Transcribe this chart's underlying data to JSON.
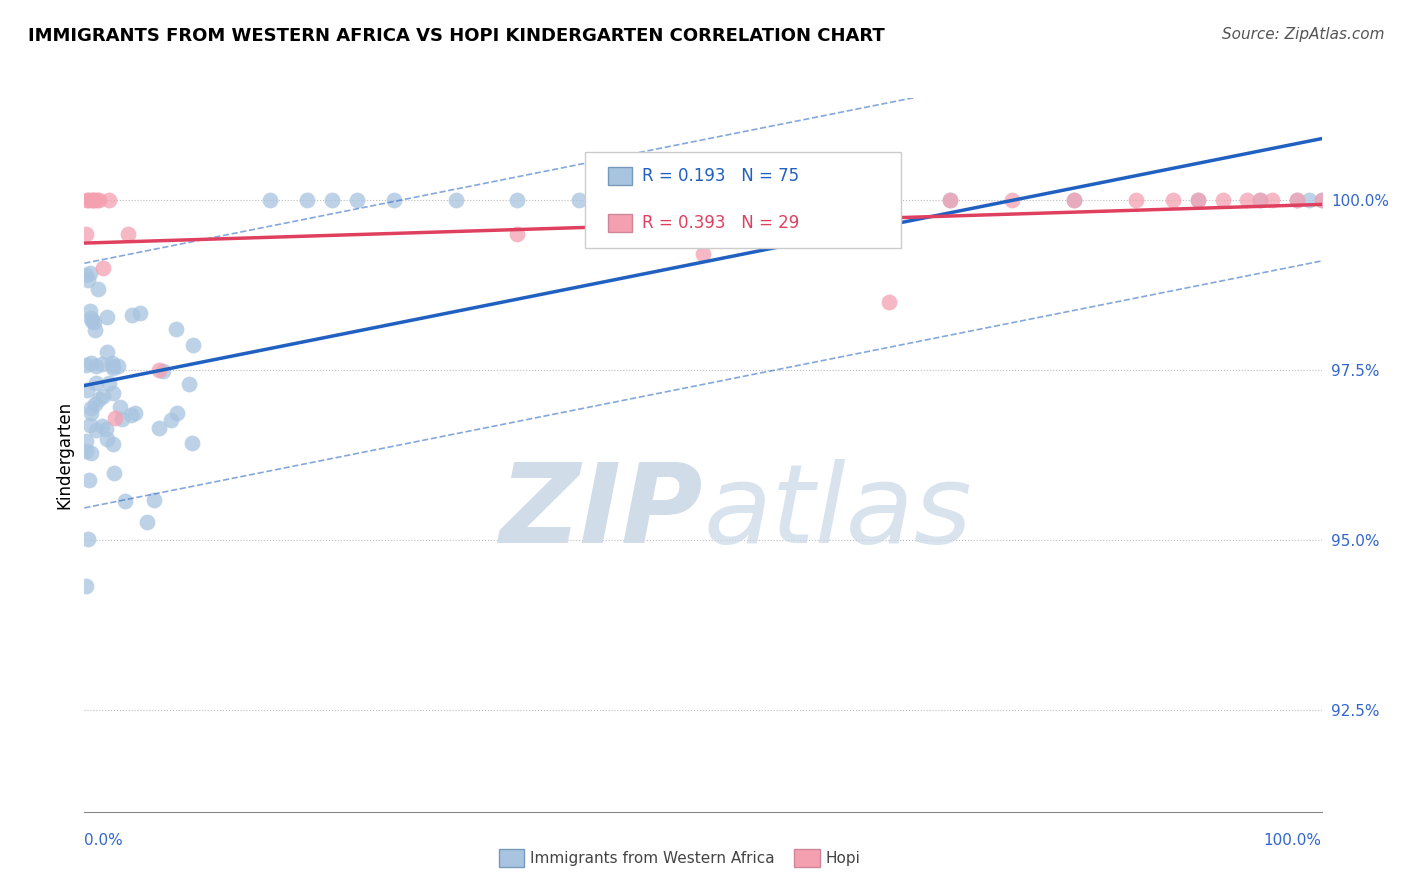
{
  "title": "IMMIGRANTS FROM WESTERN AFRICA VS HOPI KINDERGARTEN CORRELATION CHART",
  "source": "Source: ZipAtlas.com",
  "ylabel": "Kindergarten",
  "legend_blue_r": "R = 0.193",
  "legend_blue_n": "N = 75",
  "legend_pink_r": "R = 0.393",
  "legend_pink_n": "N = 29",
  "blue_color": "#a8c4e0",
  "pink_color": "#f4a0b0",
  "blue_line_color": "#2060c0",
  "pink_line_color": "#e04060",
  "xlim": [
    0.0,
    1.0
  ],
  "ylim": [
    91.0,
    101.5
  ],
  "yticks": [
    92.5,
    95.0,
    97.5,
    100.0
  ],
  "background_color": "#ffffff",
  "watermark_color": "#d0dce8"
}
